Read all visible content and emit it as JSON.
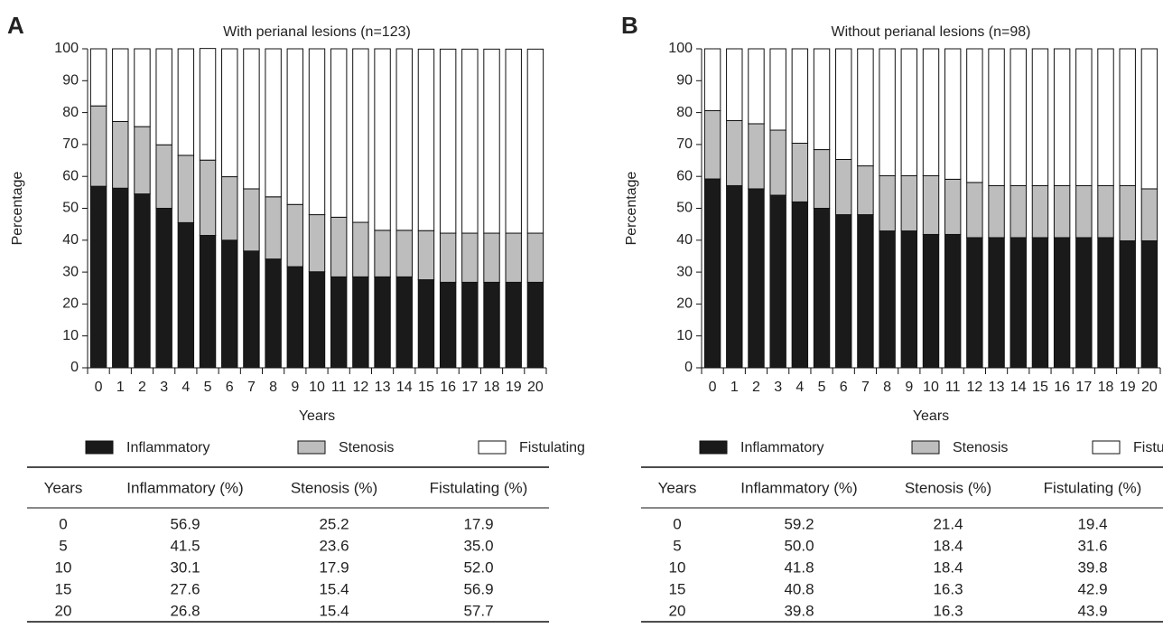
{
  "chart_data": [
    {
      "type": "bar",
      "stacked": true,
      "panel": "A",
      "title": "With perianal lesions (n=123)",
      "xlabel": "Years",
      "ylabel": "Percentage",
      "categories": [
        "0",
        "1",
        "2",
        "3",
        "4",
        "5",
        "6",
        "7",
        "8",
        "9",
        "10",
        "11",
        "12",
        "13",
        "14",
        "15",
        "16",
        "17",
        "18",
        "19",
        "20"
      ],
      "series": [
        {
          "name": "Inflammatory",
          "color": "#1a1a1a",
          "values": [
            56.9,
            56.3,
            54.5,
            50.0,
            45.5,
            41.5,
            40.0,
            36.6,
            34.1,
            31.7,
            30.1,
            28.5,
            28.5,
            28.5,
            28.5,
            27.6,
            26.8,
            26.8,
            26.8,
            26.8,
            26.8
          ]
        },
        {
          "name": "Stenosis",
          "color": "#bdbdbd",
          "values": [
            25.2,
            20.9,
            21.1,
            19.9,
            21.1,
            23.6,
            19.9,
            19.5,
            19.5,
            19.5,
            17.9,
            18.7,
            17.1,
            14.6,
            14.6,
            15.4,
            15.4,
            15.4,
            15.4,
            15.4,
            15.4
          ]
        },
        {
          "name": "Fistulating",
          "color": "#ffffff",
          "values": [
            17.9,
            22.8,
            24.4,
            30.1,
            33.4,
            35.0,
            40.1,
            43.9,
            46.4,
            48.8,
            52.0,
            52.8,
            54.4,
            56.9,
            56.9,
            56.9,
            57.7,
            57.7,
            57.7,
            57.7,
            57.7
          ]
        }
      ],
      "ylim": [
        0,
        100
      ],
      "yticks": [
        0,
        10,
        20,
        30,
        40,
        50,
        60,
        70,
        80,
        90,
        100
      ],
      "grid": false,
      "table": {
        "columns": [
          "Years",
          "Inflammatory (%)",
          "Stenosis (%)",
          "Fistulating (%)"
        ],
        "rows": [
          [
            "0",
            "56.9",
            "25.2",
            "17.9"
          ],
          [
            "5",
            "41.5",
            "23.6",
            "35.0"
          ],
          [
            "10",
            "30.1",
            "17.9",
            "52.0"
          ],
          [
            "15",
            "27.6",
            "15.4",
            "56.9"
          ],
          [
            "20",
            "26.8",
            "15.4",
            "57.7"
          ]
        ]
      }
    },
    {
      "type": "bar",
      "stacked": true,
      "panel": "B",
      "title": "Without perianal lesions (n=98)",
      "xlabel": "Years",
      "ylabel": "Percentage",
      "categories": [
        "0",
        "1",
        "2",
        "3",
        "4",
        "5",
        "6",
        "7",
        "8",
        "9",
        "10",
        "11",
        "12",
        "13",
        "14",
        "15",
        "16",
        "17",
        "18",
        "19",
        "20"
      ],
      "series": [
        {
          "name": "Inflammatory",
          "color": "#1a1a1a",
          "values": [
            59.2,
            57.1,
            56.1,
            54.1,
            52.0,
            50.0,
            48.0,
            48.0,
            42.9,
            42.9,
            41.8,
            41.8,
            40.8,
            40.8,
            40.8,
            40.8,
            40.8,
            40.8,
            40.8,
            39.8,
            39.8
          ]
        },
        {
          "name": "Stenosis",
          "color": "#bdbdbd",
          "values": [
            21.4,
            20.4,
            20.4,
            20.4,
            18.4,
            18.4,
            17.3,
            15.3,
            17.3,
            17.3,
            18.4,
            17.3,
            17.3,
            16.3,
            16.3,
            16.3,
            16.3,
            16.3,
            16.3,
            17.3,
            16.3
          ]
        },
        {
          "name": "Fistulating",
          "color": "#ffffff",
          "values": [
            19.4,
            22.5,
            23.5,
            25.5,
            29.6,
            31.6,
            34.7,
            36.7,
            39.8,
            39.8,
            39.8,
            40.9,
            41.9,
            42.9,
            42.9,
            42.9,
            42.9,
            42.9,
            42.9,
            42.9,
            43.9
          ]
        }
      ],
      "ylim": [
        0,
        100
      ],
      "yticks": [
        0,
        10,
        20,
        30,
        40,
        50,
        60,
        70,
        80,
        90,
        100
      ],
      "grid": false,
      "table": {
        "columns": [
          "Years",
          "Inflammatory (%)",
          "Stenosis (%)",
          "Fistulating (%)"
        ],
        "rows": [
          [
            "0",
            "59.2",
            "21.4",
            "19.4"
          ],
          [
            "5",
            "50.0",
            "18.4",
            "31.6"
          ],
          [
            "10",
            "41.8",
            "18.4",
            "39.8"
          ],
          [
            "15",
            "40.8",
            "16.3",
            "42.9"
          ],
          [
            "20",
            "39.8",
            "16.3",
            "43.9"
          ]
        ]
      }
    }
  ]
}
